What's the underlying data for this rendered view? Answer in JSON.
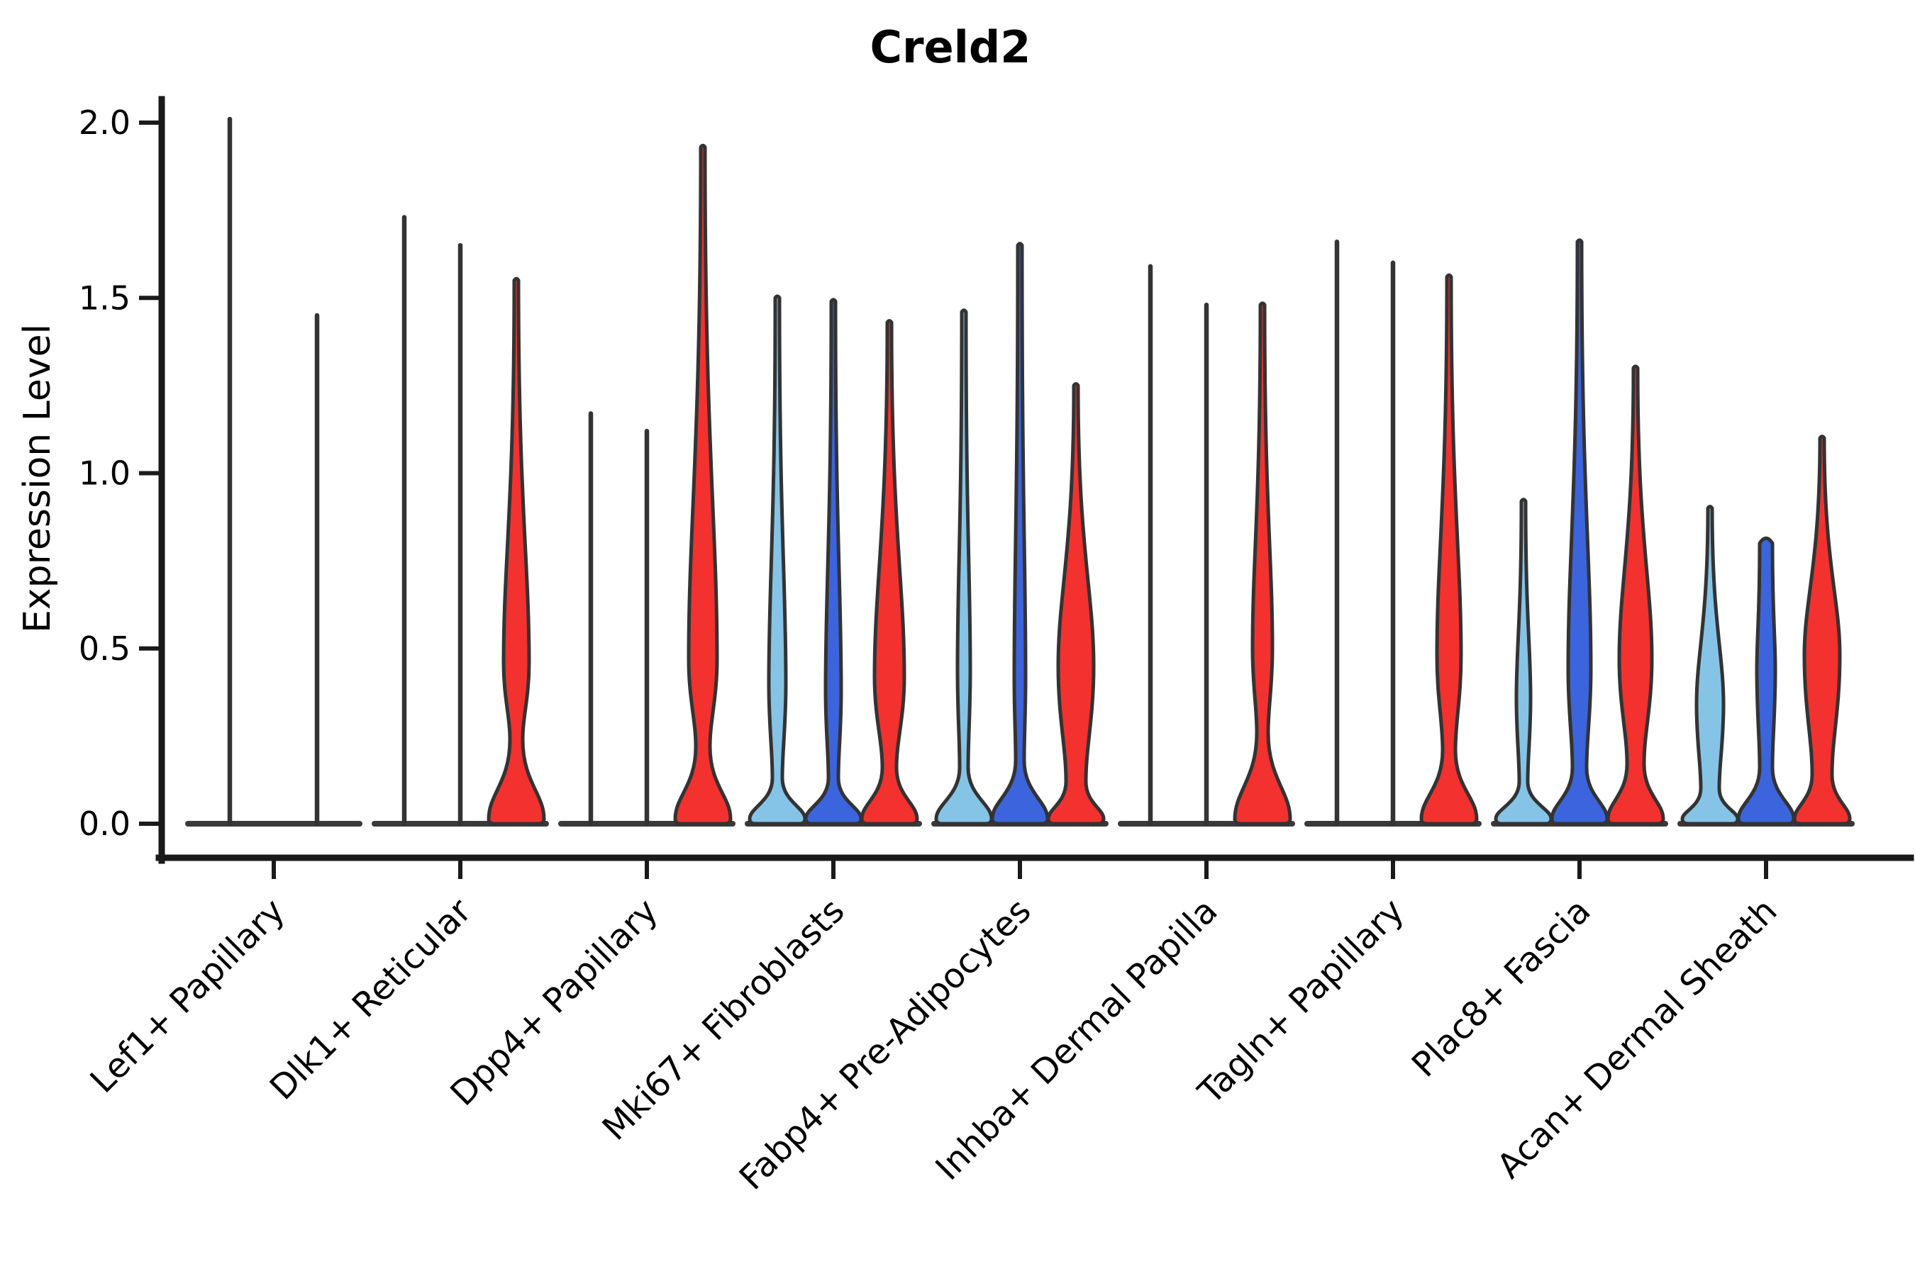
{
  "chart_data": {
    "type": "violin",
    "title": "Creld2",
    "ylabel": "Expression Level",
    "xlabel": "",
    "yticks": [
      "0.0",
      "0.5",
      "1.0",
      "1.5",
      "2.0"
    ],
    "ylim": [
      0,
      2.07
    ],
    "grid": false,
    "legend": "none",
    "palette": {
      "skyblue": "#85C4E6",
      "royalblue": "#3C64DC",
      "red": "#F3312F",
      "outline": "#333333"
    },
    "categories": [
      "Lef1+ Papillary",
      "Dlk1+ Reticular",
      "Dpp4+ Papillary",
      "Mki67+ Fibroblasts",
      "Fabp4+ Pre-Adipocytes",
      "Inhba+ Dermal Papilla",
      "Tagln+ Papillary",
      "Plac8+ Fascia",
      "Acan+ Dermal Sheath"
    ],
    "groups": [
      {
        "label": "Lef1+ Papillary",
        "violins": [
          {
            "color": "skyblue",
            "max": 2.01,
            "style": "spike"
          },
          {
            "color": "royalblue",
            "max": 1.45,
            "style": "spike"
          }
        ]
      },
      {
        "label": "Dlk1+ Reticular",
        "violins": [
          {
            "color": "skyblue",
            "max": 1.73,
            "style": "spike"
          },
          {
            "color": "royalblue",
            "max": 1.65,
            "style": "spike"
          },
          {
            "color": "red",
            "max": 1.55,
            "style": "filled",
            "peak_v": 0.46,
            "peak_hw": 18,
            "waist_v": 0.24,
            "waist_hw": 9
          }
        ]
      },
      {
        "label": "Dpp4+ Papillary",
        "violins": [
          {
            "color": "skyblue",
            "max": 1.17,
            "style": "spike"
          },
          {
            "color": "royalblue",
            "max": 1.12,
            "style": "spike"
          },
          {
            "color": "red",
            "max": 1.93,
            "style": "filled",
            "peak_v": 0.47,
            "peak_hw": 20,
            "waist_v": 0.22,
            "waist_hw": 10
          }
        ]
      },
      {
        "label": "Mki67+ Fibroblasts",
        "violins": [
          {
            "color": "skyblue",
            "max": 1.5,
            "style": "filled",
            "peak_v": 0.4,
            "peak_hw": 12,
            "waist_v": 0.13,
            "waist_hw": 7
          },
          {
            "color": "royalblue",
            "max": 1.49,
            "style": "filled",
            "peak_v": 0.38,
            "peak_hw": 11,
            "waist_v": 0.13,
            "waist_hw": 7
          },
          {
            "color": "red",
            "max": 1.43,
            "style": "filled",
            "peak_v": 0.42,
            "peak_hw": 21,
            "waist_v": 0.16,
            "waist_hw": 10
          }
        ]
      },
      {
        "label": "Fabp4+ Pre-Adipocytes",
        "violins": [
          {
            "color": "skyblue",
            "max": 1.46,
            "style": "filled",
            "peak_v": 0.44,
            "peak_hw": 9,
            "waist_v": 0.16,
            "waist_hw": 6
          },
          {
            "color": "royalblue",
            "max": 1.65,
            "style": "filled",
            "peak_v": 0.42,
            "peak_hw": 8,
            "waist_v": 0.18,
            "waist_hw": 6
          },
          {
            "color": "red",
            "max": 1.25,
            "style": "filled",
            "peak_v": 0.45,
            "peak_hw": 25,
            "waist_v": 0.12,
            "waist_hw": 14
          }
        ]
      },
      {
        "label": "Inhba+ Dermal Papilla",
        "violins": [
          {
            "color": "skyblue",
            "max": 1.59,
            "style": "spike"
          },
          {
            "color": "royalblue",
            "max": 1.48,
            "style": "spike"
          },
          {
            "color": "red",
            "max": 1.48,
            "style": "filled",
            "peak_v": 0.5,
            "peak_hw": 14,
            "waist_v": 0.26,
            "waist_hw": 8
          }
        ]
      },
      {
        "label": "Tagln+ Papillary",
        "violins": [
          {
            "color": "skyblue",
            "max": 1.66,
            "style": "spike"
          },
          {
            "color": "royalblue",
            "max": 1.6,
            "style": "spike"
          },
          {
            "color": "red",
            "max": 1.56,
            "style": "filled",
            "peak_v": 0.48,
            "peak_hw": 17,
            "waist_v": 0.21,
            "waist_hw": 9
          }
        ]
      },
      {
        "label": "Plac8+ Fascia",
        "violins": [
          {
            "color": "skyblue",
            "max": 0.92,
            "style": "filled",
            "peak_v": 0.36,
            "peak_hw": 10,
            "waist_v": 0.12,
            "waist_hw": 6
          },
          {
            "color": "royalblue",
            "max": 1.66,
            "style": "filled",
            "peak_v": 0.44,
            "peak_hw": 16,
            "waist_v": 0.16,
            "waist_hw": 10
          },
          {
            "color": "red",
            "max": 1.3,
            "style": "filled",
            "peak_v": 0.47,
            "peak_hw": 23,
            "waist_v": 0.17,
            "waist_hw": 12
          }
        ]
      },
      {
        "label": "Acan+ Dermal Sheath",
        "violins": [
          {
            "color": "skyblue",
            "max": 0.9,
            "style": "filled",
            "peak_v": 0.34,
            "peak_hw": 19,
            "waist_v": 0.1,
            "waist_hw": 13
          },
          {
            "color": "royalblue",
            "max": 0.8,
            "style": "filled",
            "tip_hw": 9,
            "peak_v": 0.44,
            "peak_hw": 13,
            "waist_v": 0.16,
            "waist_hw": 9
          },
          {
            "color": "red",
            "max": 1.1,
            "style": "filled",
            "peak_v": 0.48,
            "peak_hw": 25,
            "waist_v": 0.14,
            "waist_hw": 14
          }
        ]
      }
    ]
  }
}
